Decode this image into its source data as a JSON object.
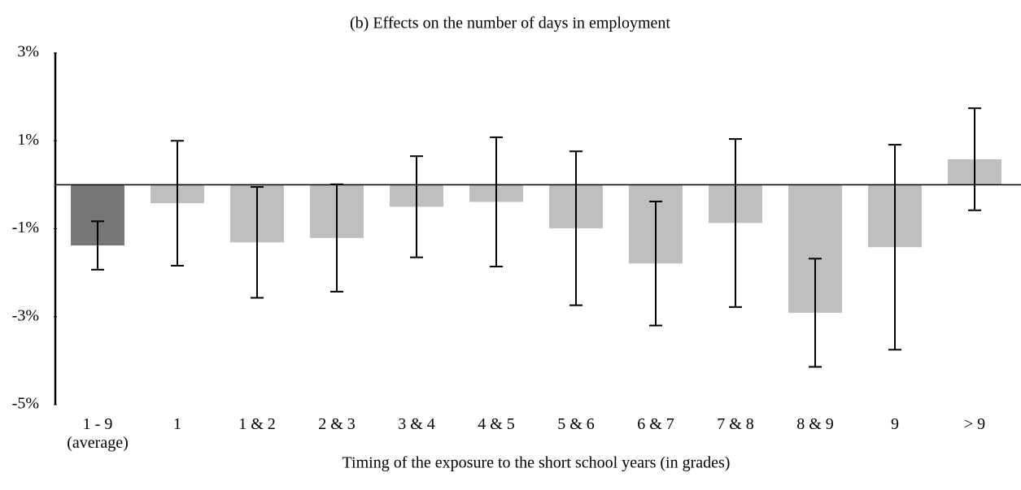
{
  "chart_data": {
    "type": "bar",
    "title": "(b) Effects on the number of days in employment",
    "x_label": "Timing of the exposure to the short school years (in grades)",
    "categories": [
      "1 - 9\n(average)",
      "1",
      "1 & 2",
      "2 & 3",
      "3 & 4",
      "4 & 5",
      "5 & 6",
      "6 & 7",
      "7 & 8",
      "8 & 9",
      "9",
      "> 9"
    ],
    "values": [
      -1.38,
      -0.42,
      -1.31,
      -1.21,
      -0.5,
      -0.39,
      -0.99,
      -1.79,
      -0.87,
      -2.91,
      -1.42,
      0.58
    ],
    "errors": [
      0.55,
      1.42,
      1.26,
      1.22,
      1.15,
      1.47,
      1.75,
      1.41,
      1.91,
      1.23,
      2.33,
      1.16
    ],
    "colors": [
      "#767676",
      "#bfbfbf",
      "#bfbfbf",
      "#bfbfbf",
      "#bfbfbf",
      "#bfbfbf",
      "#bfbfbf",
      "#bfbfbf",
      "#bfbfbf",
      "#bfbfbf",
      "#bfbfbf",
      "#bfbfbf"
    ],
    "ylim": [
      -5,
      3
    ],
    "yticks": [
      {
        "value": 3,
        "label": "3%"
      },
      {
        "value": 1,
        "label": "1%"
      },
      {
        "value": -1,
        "label": "-1%"
      },
      {
        "value": -3,
        "label": "-3%"
      },
      {
        "value": -5,
        "label": "-5%"
      }
    ]
  }
}
